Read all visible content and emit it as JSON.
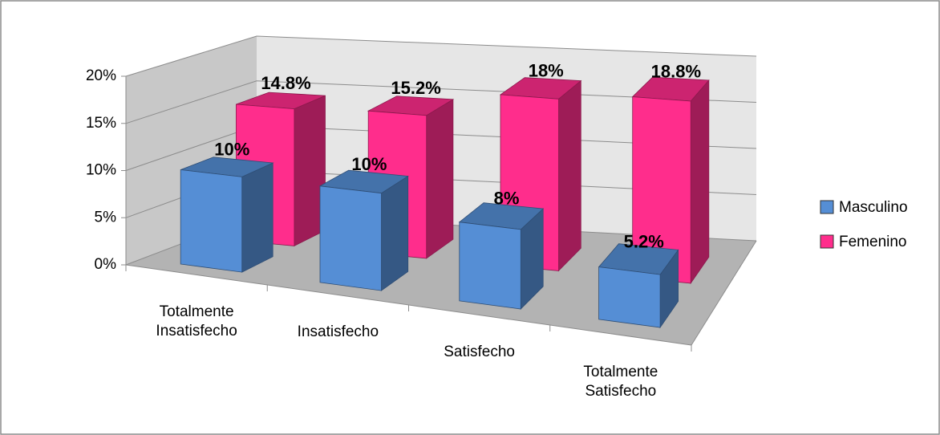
{
  "chart_data": {
    "type": "bar3d",
    "categories": [
      "Totalmente Insatisfecho",
      "Insatisfecho",
      "Satisfecho",
      "Totalmente Satisfecho"
    ],
    "series": [
      {
        "name": "Masculino",
        "color": "#558ed5",
        "values": [
          10,
          10,
          8,
          5.2
        ],
        "value_labels": [
          "10%",
          "10%",
          "8%",
          "5.2%"
        ]
      },
      {
        "name": "Femenino",
        "color": "#ff2d8c",
        "values": [
          14.8,
          15.2,
          18,
          18.8
        ],
        "value_labels": [
          "14.8%",
          "15.2%",
          "18%",
          "18.8%"
        ]
      }
    ],
    "ylim": [
      0,
      20
    ],
    "yticks": [
      {
        "value": 0,
        "label": "0%"
      },
      {
        "value": 5,
        "label": "5%"
      },
      {
        "value": 10,
        "label": "10%"
      },
      {
        "value": 15,
        "label": "15%"
      },
      {
        "value": 20,
        "label": "20%"
      }
    ],
    "grid": true,
    "legend": "right"
  }
}
